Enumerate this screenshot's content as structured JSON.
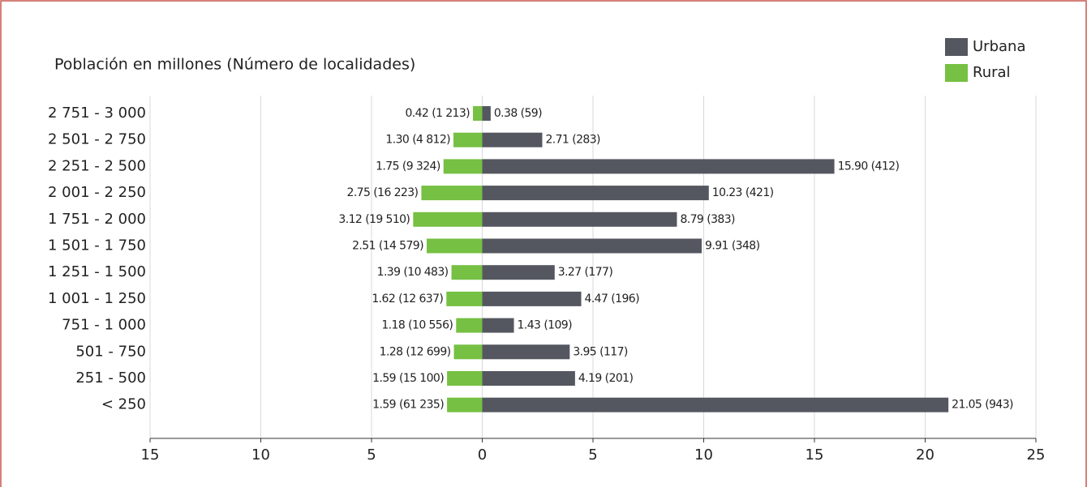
{
  "chart_data": {
    "type": "diverging-bar",
    "title": "Población en millones (Número de localidades)",
    "categories": [
      "2 751 - 3 000",
      "2 501 - 2 750",
      "2 251 - 2 500",
      "2 001 - 2 250",
      "1 751 - 2 000",
      "1 501 - 1 750",
      "1 251 - 1 500",
      "1 001 - 1 250",
      "751 - 1 000",
      "501 - 750",
      "251 - 500",
      "< 250"
    ],
    "series": [
      {
        "name": "Urbana",
        "color": "#555760",
        "values": [
          0.38,
          2.71,
          15.9,
          10.23,
          8.79,
          9.91,
          3.27,
          4.47,
          1.43,
          3.95,
          4.19,
          21.05
        ],
        "value_labels": [
          "0.38",
          "2.71",
          "15.90",
          "10.23",
          "8.79",
          "9.91",
          "3.27",
          "4.47",
          "1.43",
          "3.95",
          "4.19",
          "21.05"
        ],
        "localities": [
          59,
          283,
          412,
          421,
          383,
          348,
          177,
          196,
          109,
          117,
          201,
          943
        ],
        "locality_labels": [
          "(59)",
          "(283)",
          "(412)",
          "(421)",
          "(383)",
          "(348)",
          "(177)",
          "(196)",
          "(109)",
          "(117)",
          "(201)",
          "(943)"
        ]
      },
      {
        "name": "Rural",
        "color": "#76c043",
        "values": [
          0.42,
          1.3,
          1.75,
          2.75,
          3.12,
          2.51,
          1.39,
          1.62,
          1.18,
          1.28,
          1.59,
          1.59
        ],
        "value_labels": [
          "0.42",
          "1.30",
          "1.75",
          "2.75",
          "3.12",
          "2.51",
          "1.39",
          "1.62",
          "1.18",
          "1.28",
          "1.59",
          "1.59"
        ],
        "localities": [
          1213,
          4812,
          9324,
          16223,
          19510,
          14579,
          10483,
          12637,
          10556,
          12699,
          15100,
          61235
        ],
        "locality_labels": [
          "(1 213)",
          "(4 812)",
          "(9 324)",
          "(16 223)",
          "(19 510)",
          "(14 579)",
          "(10 483)",
          "(12 637)",
          "(10 556)",
          "(12 699)",
          "(15 100)",
          "(61 235)"
        ]
      }
    ],
    "xlim": [
      -15,
      25
    ],
    "xticks": [
      {
        "value": -15,
        "label": "15"
      },
      {
        "value": -10,
        "label": "10"
      },
      {
        "value": -5,
        "label": "5"
      },
      0,
      5,
      10,
      15,
      20,
      25
    ],
    "grid": true
  }
}
